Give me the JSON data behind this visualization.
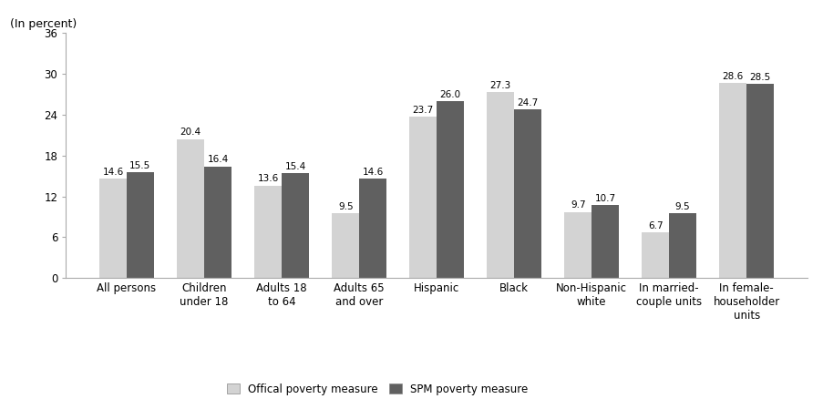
{
  "categories": [
    "All persons",
    "Children\nunder 18",
    "Adults 18\nto 64",
    "Adults 65\nand over",
    "Hispanic",
    "Black",
    "Non-Hispanic\nwhite",
    "In married-\ncouple units",
    "In female-\nhouseholder\nunits"
  ],
  "official": [
    14.6,
    20.4,
    13.6,
    9.5,
    23.7,
    27.3,
    9.7,
    6.7,
    28.6
  ],
  "spm": [
    15.5,
    16.4,
    15.4,
    14.6,
    26.0,
    24.7,
    10.7,
    9.5,
    28.5
  ],
  "official_color": "#d3d3d3",
  "spm_color": "#606060",
  "bar_width": 0.35,
  "ylim": [
    0,
    36
  ],
  "yticks": [
    0,
    6,
    12,
    18,
    24,
    30,
    36
  ],
  "ylabel": "(In percent)",
  "legend_official": "Offical poverty measure",
  "legend_spm": "SPM poverty measure",
  "label_fontsize": 7.5,
  "tick_fontsize": 8.5,
  "ylabel_fontsize": 9
}
